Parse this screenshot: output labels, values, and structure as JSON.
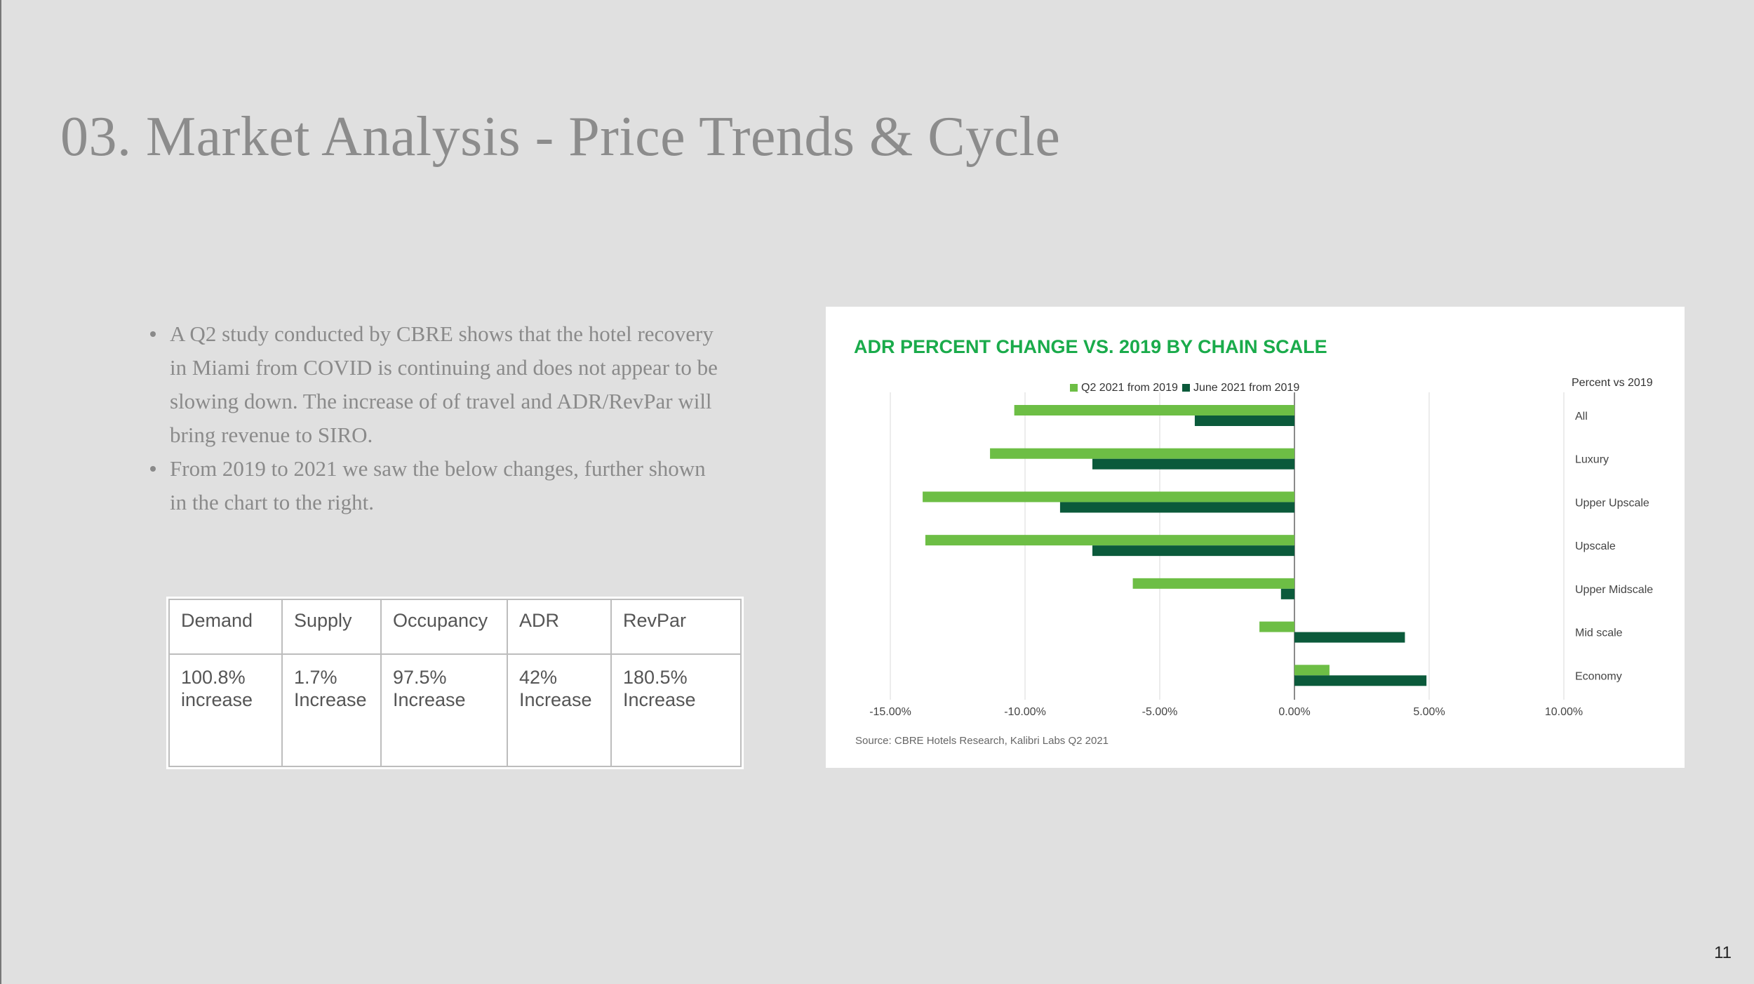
{
  "slide": {
    "title": "03. Market Analysis - Price Trends & Cycle",
    "page_number": "11"
  },
  "bullets": [
    "A Q2 study conducted by CBRE shows that the hotel recovery in Miami from COVID is continuing and does not appear to be slowing down. The increase of of travel and ADR/RevPar will bring revenue to SIRO.",
    "From 2019 to 2021 we saw the below changes, further shown in the chart to the right."
  ],
  "stats_table": {
    "headers": [
      "Demand",
      "Supply",
      "Occupancy",
      "ADR",
      "RevPar"
    ],
    "values": [
      [
        "100.8%",
        "increase"
      ],
      [
        "1.7%",
        "Increase"
      ],
      [
        "97.5%",
        "Increase"
      ],
      [
        "42%",
        "Increase"
      ],
      [
        "180.5%",
        "Increase"
      ]
    ]
  },
  "colors": {
    "background": "#e0e0e0",
    "title_text": "#8c8c8c",
    "chart_title": "#1aab4b",
    "series_q2": "#6dbe45",
    "series_june": "#0b5a3b"
  },
  "chart_data": {
    "type": "bar",
    "orientation": "horizontal",
    "title": "ADR PERCENT CHANGE VS. 2019 BY CHAIN SCALE",
    "category_header": "Percent vs 2019",
    "categories": [
      "All",
      "Luxury",
      "Upper Upscale",
      "Upscale",
      "Upper Midscale",
      "Mid scale",
      "Economy"
    ],
    "series": [
      {
        "name": "Q2 2021 from 2019",
        "color": "#6dbe45",
        "values": [
          -10.4,
          -11.3,
          -13.8,
          -13.7,
          -6.0,
          -1.3,
          1.3
        ]
      },
      {
        "name": "June 2021 from 2019",
        "color": "#0b5a3b",
        "values": [
          -3.7,
          -7.5,
          -8.7,
          -7.5,
          -0.5,
          4.1,
          4.9
        ]
      }
    ],
    "x_ticks": [
      "-15.00%",
      "-10.00%",
      "-5.00%",
      "0.00%",
      "5.00%",
      "10.00%"
    ],
    "xlim": [
      -15,
      10
    ],
    "grid": true,
    "legend_position": "top",
    "source": "Source: CBRE Hotels Research, Kalibri Labs Q2 2021"
  }
}
